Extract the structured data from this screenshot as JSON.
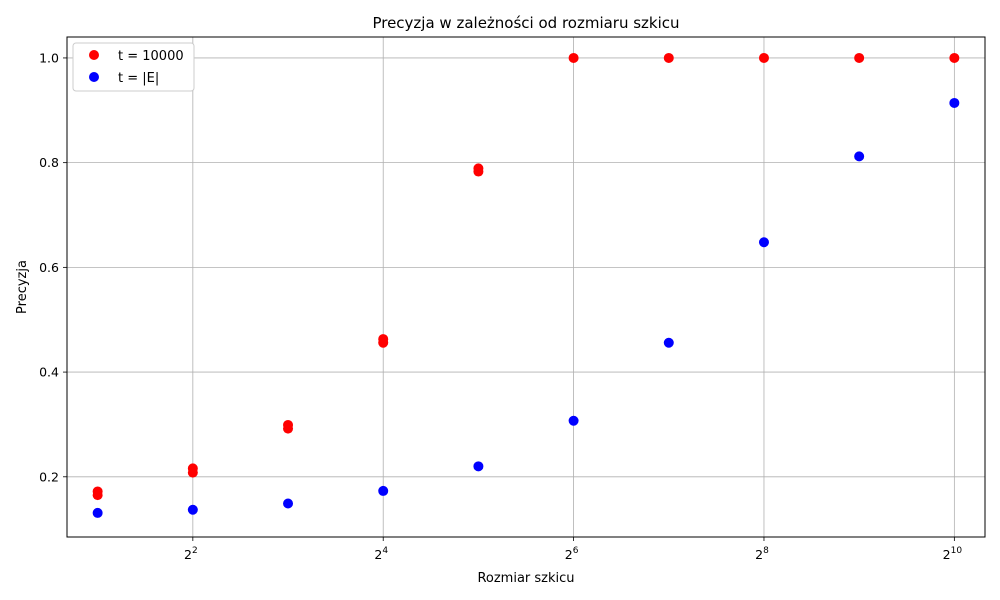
{
  "chart_data": {
    "type": "scatter",
    "title": "Precyzja w zależności od rozmiaru szkicu",
    "xlabel": "Rozmiar szkicu",
    "ylabel": "Precyzja",
    "xscale": "log2",
    "xlim": [
      1.6,
      1280
    ],
    "ylim": [
      0.085,
      1.04
    ],
    "grid": true,
    "legend_position": "top-left",
    "x_ticks": [
      {
        "value": 4,
        "base": "2",
        "exp": "2"
      },
      {
        "value": 16,
        "base": "2",
        "exp": "4"
      },
      {
        "value": 64,
        "base": "2",
        "exp": "6"
      },
      {
        "value": 256,
        "base": "2",
        "exp": "8"
      },
      {
        "value": 1024,
        "base": "2",
        "exp": "10"
      }
    ],
    "y_ticks": [
      {
        "value": 0.2,
        "label": "0.2"
      },
      {
        "value": 0.4,
        "label": "0.4"
      },
      {
        "value": 0.6,
        "label": "0.6"
      },
      {
        "value": 0.8,
        "label": "0.8"
      },
      {
        "value": 1.0,
        "label": "1.0"
      }
    ],
    "series": [
      {
        "name": "t = 10000",
        "color": "#ff0000",
        "points": [
          [
            2,
            0.165
          ],
          [
            2,
            0.172
          ],
          [
            4,
            0.208
          ],
          [
            4,
            0.216
          ],
          [
            8,
            0.292
          ],
          [
            8,
            0.299
          ],
          [
            16,
            0.456
          ],
          [
            16,
            0.463
          ],
          [
            32,
            0.783
          ],
          [
            32,
            0.789
          ],
          [
            64,
            1.0
          ],
          [
            128,
            1.0
          ],
          [
            256,
            1.0
          ],
          [
            512,
            1.0
          ],
          [
            1024,
            1.0
          ]
        ]
      },
      {
        "name": "t = |E|",
        "color": "#0000ff",
        "points": [
          [
            2,
            0.131
          ],
          [
            4,
            0.137
          ],
          [
            8,
            0.149
          ],
          [
            16,
            0.173
          ],
          [
            32,
            0.22
          ],
          [
            64,
            0.307
          ],
          [
            128,
            0.456
          ],
          [
            256,
            0.648
          ],
          [
            512,
            0.812
          ],
          [
            1024,
            0.914
          ]
        ]
      }
    ]
  }
}
